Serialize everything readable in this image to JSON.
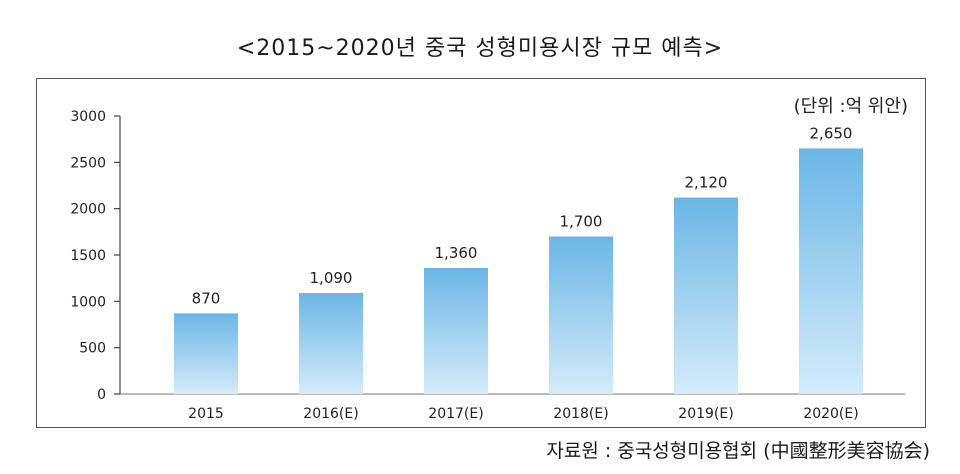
{
  "title": "<2015~2020년 중국 성형미용시장 규모 예측>",
  "unit_label": "(단위 :억 위안)",
  "source": "자료원 : 중국성형미용협회 (中國整形美容協会)",
  "chart_data": {
    "type": "bar",
    "categories": [
      "2015",
      "2016(E)",
      "2017(E)",
      "2018(E)",
      "2019(E)",
      "2020(E)"
    ],
    "values": [
      870,
      1090,
      1360,
      1700,
      2120,
      2650
    ],
    "value_labels": [
      "870",
      "1,090",
      "1,360",
      "1,700",
      "2,120",
      "2,650"
    ],
    "yticks": [
      0,
      500,
      1000,
      1500,
      2000,
      2500,
      3000
    ],
    "ylim": [
      0,
      3000
    ],
    "grid": false,
    "bar_color_top": "#6bb6e6",
    "bar_color_bottom": "#d4ecfa"
  }
}
